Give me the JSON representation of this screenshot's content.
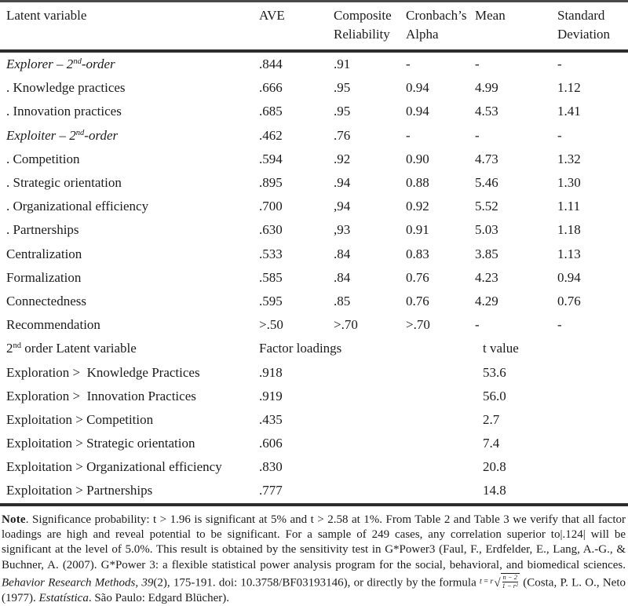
{
  "table": {
    "headers": [
      "Latent variable",
      "AVE",
      "Composite Reliability",
      "Cronbach’s Alpha",
      "Mean",
      "Standard Deviation"
    ],
    "rows": [
      {
        "label_html": "<i>Explorer – 2<sup>nd</sup>-order</i>",
        "ave": ".844",
        "cr": ".91",
        "alpha": "-",
        "mean": "-",
        "sd": "-"
      },
      {
        "label_html": ". Knowledge practices",
        "ave": ".666",
        "cr": ".95",
        "alpha": "0.94",
        "mean": "4.99",
        "sd": "1.12"
      },
      {
        "label_html": ". Innovation practices",
        "ave": ".685",
        "cr": ".95",
        "alpha": "0.94",
        "mean": "4.53",
        "sd": "1.41"
      },
      {
        "label_html": "<i>Exploiter – 2<sup>nd</sup>-order</i>",
        "ave": ".462",
        "cr": ".76",
        "alpha": "-",
        "mean": "-",
        "sd": "-"
      },
      {
        "label_html": ". Competition",
        "ave": ".594",
        "cr": ".92",
        "alpha": "0.90",
        "mean": "4.73",
        "sd": "1.32"
      },
      {
        "label_html": ". Strategic orientation",
        "ave": ".895",
        "cr": ".94",
        "alpha": "0.88",
        "mean": "5.46",
        "sd": "1.30"
      },
      {
        "label_html": ". Organizational efficiency",
        "ave": ".700",
        "cr": ",94",
        "alpha": "0.92",
        "mean": "5.52",
        "sd": "1.11"
      },
      {
        "label_html": ". Partnerships",
        "ave": ".630",
        "cr": ",93",
        "alpha": "0.91",
        "mean": "5.03",
        "sd": "1.18"
      },
      {
        "label_html": "Centralization",
        "ave": ".533",
        "cr": ".84",
        "alpha": "0.83",
        "mean": "3.85",
        "sd": "1.13"
      },
      {
        "label_html": "Formalization",
        "ave": ".585",
        "cr": ".84",
        "alpha": "0.76",
        "mean": "4.23",
        "sd": "0.94"
      },
      {
        "label_html": "Connectedness",
        "ave": ".595",
        "cr": ".85",
        "alpha": "0.76",
        "mean": "4.29",
        "sd": "0.76"
      },
      {
        "label_html": "Recommendation",
        "ave": ">.50",
        "cr": ">.70",
        "alpha": ">.70",
        "mean": "-",
        "sd": "-"
      }
    ],
    "section2": {
      "header": {
        "label_html": "2<sup>nd</sup> order Latent variable",
        "loadings": "Factor loadings",
        "tvalue": "t value"
      },
      "rows": [
        {
          "label": "Exploration >  Knowledge Practices",
          "loading": ".918",
          "t": "53.6"
        },
        {
          "label": "Exploration >  Innovation Practices",
          "loading": ".919",
          "t": "56.0"
        },
        {
          "label": "Exploitation > Competition",
          "loading": ".435",
          "t": "2.7"
        },
        {
          "label": "Exploitation > Strategic orientation",
          "loading": ".606",
          "t": "7.4"
        },
        {
          "label": "Exploitation > Organizational efficiency",
          "loading": ".830",
          "t": "20.8"
        },
        {
          "label": "Exploitation > Partnerships",
          "loading": ".777",
          "t": "14.8"
        }
      ]
    }
  },
  "note": {
    "html": "<b>Note</b>. Significance probability: t &gt; 1.96 is significant at 5% and t &gt; 2.58 at 1%. From Table 2 and Table 3 we verify that all factor loadings are high and reveal potential to be significant. For a sample of 249 cases, any correlation superior to|.124| will be significant at the level of 5.0%. This result is obtained by the sensitivity test in G*Power3 (Faul, F., Erdfelder, E., Lang, A.-G., &amp; Buchner, A. (2007). G*Power 3: a flexible statistical power analysis program for the social, behavioral, and biomedical sciences. <i>Behavior Research Methods, 39</i>(2), 175-191. doi: 10.3758/BF03193146), or directly by the formula <span class='fml' data-name='t-formula'><i>t</i> = <i>r</i><span class='rad'>√</span><span class='frac'><span class='fn'>n − 2</span><span class='fd'>1 − r<sup>2</sup></span></span></span> (Costa, P. L. O., Neto (1977). <i>Estatística</i>. São Paulo: Edgard Blücher)."
  }
}
